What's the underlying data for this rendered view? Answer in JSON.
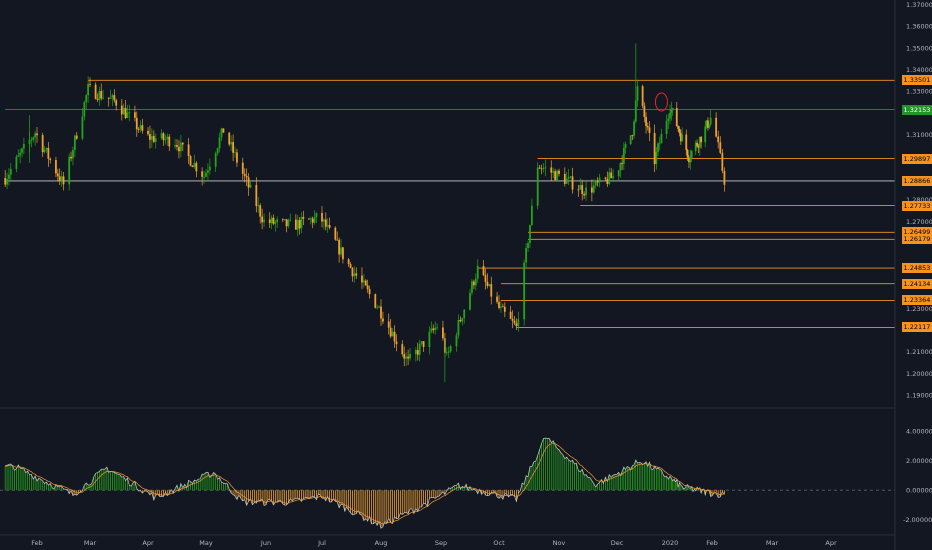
{
  "price_axis": {
    "ticks": [
      "1.37000",
      "1.36000",
      "1.35000",
      "1.34000",
      "1.33000",
      "1.31000",
      "1.28000",
      "1.27000",
      "1.23000",
      "1.21000",
      "1.20000",
      "1.19000"
    ]
  },
  "price_labels": [
    {
      "text": "1.33501",
      "value": 1.33501,
      "color": "#f7931a"
    },
    {
      "text": "1.32153",
      "value": 1.32153,
      "color": "#23932a"
    },
    {
      "text": "1.29897",
      "value": 1.29897,
      "color": "#f7931a"
    },
    {
      "text": "1.28866",
      "value": 1.28866,
      "color": "#f7931a"
    },
    {
      "text": "1.27733",
      "value": 1.27733,
      "color": "#f7931a"
    },
    {
      "text": "1.26499",
      "value": 1.26499,
      "color": "#f7931a"
    },
    {
      "text": "1.26179",
      "value": 1.26179,
      "color": "#f7931a"
    },
    {
      "text": "1.24853",
      "value": 1.24853,
      "color": "#f7931a"
    },
    {
      "text": "1.24134",
      "value": 1.24134,
      "color": "#f7931a"
    },
    {
      "text": "1.23364",
      "value": 1.23364,
      "color": "#f7931a"
    },
    {
      "text": "1.22117",
      "value": 1.22117,
      "color": "#f7931a"
    }
  ],
  "indicator_axis": {
    "ticks": [
      "4.00000",
      "2.00000",
      "0.00000",
      "-2.00000"
    ],
    "tick_values": [
      4,
      2,
      0,
      -2
    ]
  },
  "time_axis": {
    "labels": [
      "Feb",
      "Mar",
      "Apr",
      "May",
      "Jun",
      "Jul",
      "Aug",
      "Sep",
      "Oct",
      "Nov",
      "Dec",
      "2020",
      "Feb",
      "Mar",
      "Apr"
    ]
  },
  "colors": {
    "background": "#131722",
    "bull": "#24a51b",
    "bear": "#f0a030",
    "level_line": "#f7931a",
    "green_level": "#23932a",
    "white_level": "#c8c8c8",
    "signal_line": "#f29a2e",
    "macd_line": "#c8c8c8",
    "marker": "#e0282a"
  },
  "chart_data": {
    "type": "candlestick",
    "price_range": [
      1.185,
      1.372
    ],
    "key_price_path": [
      {
        "date": "2019-01-15",
        "price": 1.29
      },
      {
        "date": "2019-01-31",
        "price": 1.311
      },
      {
        "date": "2019-02-15",
        "price": 1.287
      },
      {
        "date": "2019-02-28",
        "price": 1.331
      },
      {
        "date": "2019-03-15",
        "price": 1.325
      },
      {
        "date": "2019-03-31",
        "price": 1.309
      },
      {
        "date": "2019-04-15",
        "price": 1.307
      },
      {
        "date": "2019-04-30",
        "price": 1.291
      },
      {
        "date": "2019-05-10",
        "price": 1.312
      },
      {
        "date": "2019-05-31",
        "price": 1.27
      },
      {
        "date": "2019-06-15",
        "price": 1.268
      },
      {
        "date": "2019-06-30",
        "price": 1.272
      },
      {
        "date": "2019-07-15",
        "price": 1.25
      },
      {
        "date": "2019-07-31",
        "price": 1.23
      },
      {
        "date": "2019-08-15",
        "price": 1.205
      },
      {
        "date": "2019-08-31",
        "price": 1.223
      },
      {
        "date": "2019-09-04",
        "price": 1.207
      },
      {
        "date": "2019-09-20",
        "price": 1.248
      },
      {
        "date": "2019-10-01",
        "price": 1.23
      },
      {
        "date": "2019-10-10",
        "price": 1.221
      },
      {
        "date": "2019-10-21",
        "price": 1.296
      },
      {
        "date": "2019-11-05",
        "price": 1.289
      },
      {
        "date": "2019-11-15",
        "price": 1.284
      },
      {
        "date": "2019-11-30",
        "price": 1.291
      },
      {
        "date": "2019-12-10",
        "price": 1.312
      },
      {
        "date": "2019-12-13",
        "price": 1.331
      },
      {
        "date": "2019-12-23",
        "price": 1.298
      },
      {
        "date": "2020-01-01",
        "price": 1.323
      },
      {
        "date": "2020-01-15",
        "price": 1.3
      },
      {
        "date": "2020-01-25",
        "price": 1.31
      },
      {
        "date": "2020-02-01",
        "price": 1.319
      },
      {
        "date": "2020-02-07",
        "price": 1.289
      }
    ],
    "horizontal_levels": [
      {
        "price": 1.33501,
        "start_date": "2019-02-28",
        "color": "orange"
      },
      {
        "price": 1.32153,
        "start_date": "2019-01-15",
        "color": "green"
      },
      {
        "price": 1.29897,
        "start_date": "2019-10-21",
        "color": "orange"
      },
      {
        "price": 1.28866,
        "start_date": "2019-01-15",
        "color": "white"
      },
      {
        "price": 1.27733,
        "start_date": "2019-11-12",
        "color": "orange"
      },
      {
        "price": 1.26499,
        "start_date": "2019-10-16",
        "color": "orange"
      },
      {
        "price": 1.26179,
        "start_date": "2019-10-16",
        "color": "orange"
      },
      {
        "price": 1.24853,
        "start_date": "2019-09-20",
        "color": "orange"
      },
      {
        "price": 1.24134,
        "start_date": "2019-10-02",
        "color": "orange"
      },
      {
        "price": 1.23364,
        "start_date": "2019-10-02",
        "color": "orange"
      },
      {
        "price": 1.22117,
        "start_date": "2019-10-10",
        "color": "orange"
      }
    ],
    "indicator": {
      "range": [
        -2.9,
        5.3
      ],
      "key_values": [
        {
          "date": "2019-01-20",
          "value": 1.6
        },
        {
          "date": "2019-02-20",
          "value": -0.3
        },
        {
          "date": "2019-03-10",
          "value": 1.5
        },
        {
          "date": "2019-04-05",
          "value": -0.5
        },
        {
          "date": "2019-05-05",
          "value": 1.2
        },
        {
          "date": "2019-05-20",
          "value": -0.8
        },
        {
          "date": "2019-06-15",
          "value": -0.8
        },
        {
          "date": "2019-07-01",
          "value": -0.4
        },
        {
          "date": "2019-08-01",
          "value": -2.4
        },
        {
          "date": "2019-08-20",
          "value": -1.2
        },
        {
          "date": "2019-09-10",
          "value": 0.3
        },
        {
          "date": "2019-10-10",
          "value": -0.6
        },
        {
          "date": "2019-10-25",
          "value": 3.6
        },
        {
          "date": "2019-11-20",
          "value": 0.4
        },
        {
          "date": "2019-12-15",
          "value": 2.0
        },
        {
          "date": "2020-01-10",
          "value": 0.2
        },
        {
          "date": "2020-02-07",
          "value": -0.3
        }
      ]
    }
  }
}
